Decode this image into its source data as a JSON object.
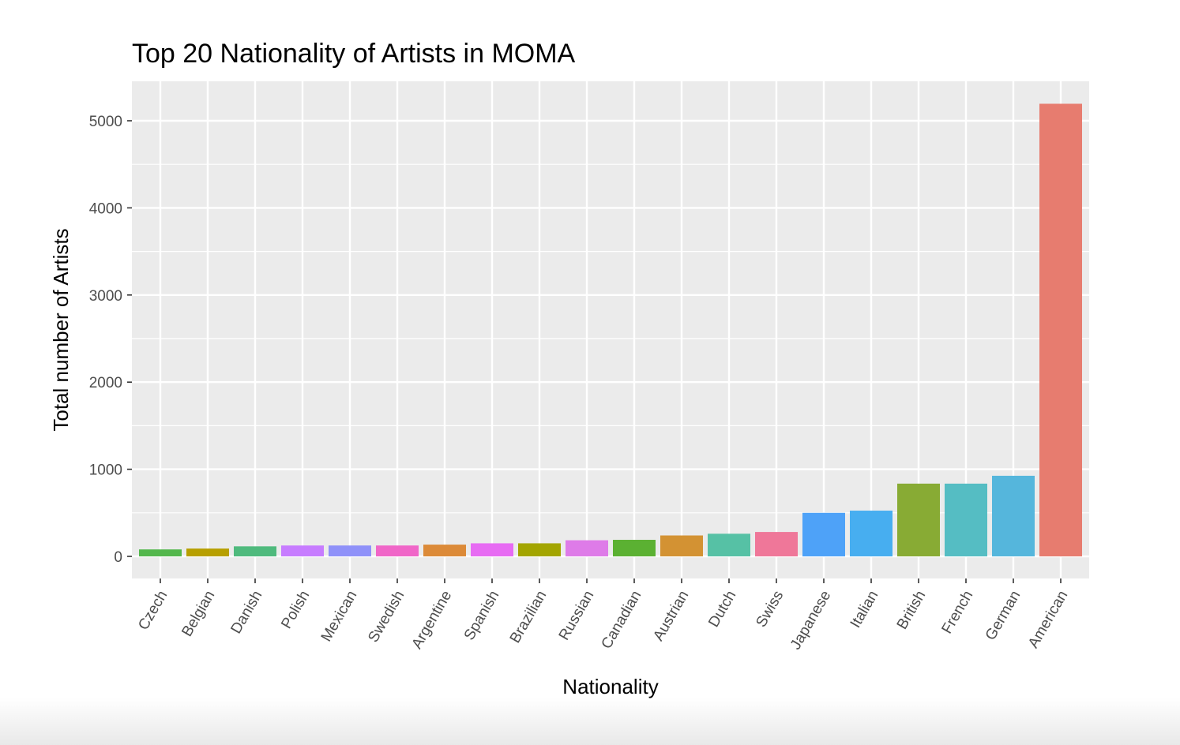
{
  "chart_data": {
    "type": "bar",
    "title": "Top 20 Nationality of Artists in MOMA",
    "xlabel": "Nationality",
    "ylabel": "Total number of Artists",
    "ylim": [
      -250,
      5460
    ],
    "yticks": [
      0,
      1000,
      2000,
      3000,
      4000,
      5000
    ],
    "ytick_labels": [
      "0",
      "1000",
      "2000",
      "3000",
      "4000",
      "5000"
    ],
    "grid": true,
    "legend": "none",
    "panel_background": "#ebebeb",
    "grid_color": "#ffffff",
    "categories": [
      "Czech",
      "Belgian",
      "Danish",
      "Polish",
      "Mexican",
      "Swedish",
      "Argentine",
      "Spanish",
      "Brazilian",
      "Russian",
      "Canadian",
      "Austrian",
      "Dutch",
      "Swiss",
      "Japanese",
      "Italian",
      "British",
      "French",
      "German",
      "American"
    ],
    "values": [
      80,
      90,
      115,
      125,
      125,
      125,
      135,
      150,
      150,
      185,
      190,
      240,
      260,
      280,
      500,
      525,
      835,
      835,
      925,
      5195
    ],
    "colors": [
      "#53b74c",
      "#b79f00",
      "#4fba7d",
      "#c77cff",
      "#8f91f9",
      "#f066c8",
      "#dc8a38",
      "#e76bf3",
      "#a3a500",
      "#de7be8",
      "#5bb132",
      "#d39233",
      "#56c1a5",
      "#ef7799",
      "#4ea2f8",
      "#47aef0",
      "#88ab34",
      "#55bdc3",
      "#55b6dc",
      "#e77c6f"
    ]
  }
}
